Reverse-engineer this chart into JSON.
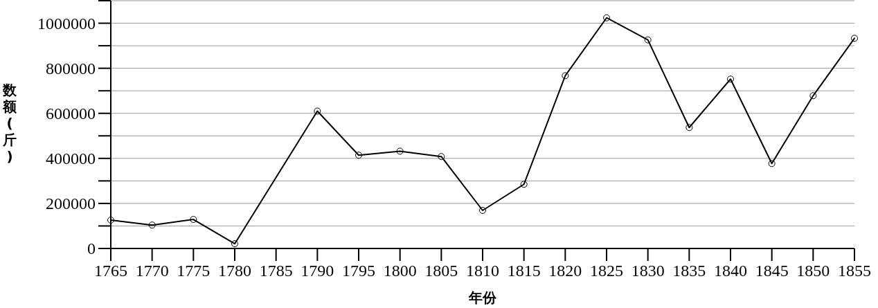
{
  "chart_data": {
    "type": "line",
    "xlabel": "年份",
    "ylabel": "数额(斤)",
    "x": [
      1765,
      1770,
      1775,
      1780,
      1790,
      1795,
      1800,
      1805,
      1810,
      1815,
      1820,
      1825,
      1830,
      1835,
      1840,
      1845,
      1850,
      1855
    ],
    "series": [
      {
        "color": "#000000",
        "values": [
          126000,
          104000,
          129000,
          21000,
          610000,
          414000,
          432000,
          408000,
          169000,
          285000,
          767000,
          1024000,
          926000,
          537000,
          752000,
          377000,
          678000,
          933000
        ]
      }
    ],
    "xlim": [
      1765,
      1855
    ],
    "xticks": [
      1765,
      1770,
      1775,
      1780,
      1785,
      1790,
      1795,
      1800,
      1805,
      1810,
      1815,
      1820,
      1825,
      1830,
      1835,
      1840,
      1845,
      1850,
      1855
    ],
    "ylim": [
      0,
      1100000
    ],
    "yticks": [
      0,
      {
        "value": 100000,
        "label": null
      },
      200000,
      {
        "value": 300000,
        "label": null
      },
      400000,
      {
        "value": 500000,
        "label": null
      },
      600000,
      {
        "value": 700000,
        "label": null
      },
      800000,
      {
        "value": 900000,
        "label": null
      },
      1000000,
      {
        "value": 1100000,
        "label": null
      }
    ],
    "grid": "y",
    "marker": "circle",
    "line_style": "solid"
  }
}
